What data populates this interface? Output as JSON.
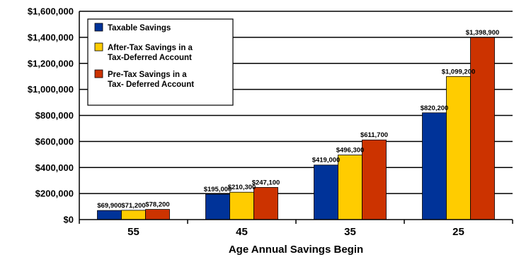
{
  "chart_data": {
    "type": "bar",
    "title": "",
    "xlabel": "Age Annual Savings Begin",
    "ylabel": "",
    "ylim": [
      0,
      1600000
    ],
    "ytick_step": 200000,
    "grid": true,
    "legend_position": "top-left",
    "categories": [
      "55",
      "45",
      "35",
      "25"
    ],
    "series": [
      {
        "name": "Taxable Savings",
        "color": "#003399",
        "values": [
          69900,
          195000,
          419000,
          820200
        ],
        "labels": [
          "$69,900",
          "$195,000",
          "$419,000",
          "$820,200"
        ]
      },
      {
        "name": "After-Tax Savings in a Tax-Deferred Account",
        "legend_lines": [
          "After-Tax Savings in a",
          "Tax-Deferred Account"
        ],
        "color": "#FFCC00",
        "values": [
          71200,
          210300,
          496300,
          1099200
        ],
        "labels": [
          "$71,200",
          "$210,300",
          "$496,300",
          "$1,099,200"
        ]
      },
      {
        "name": "Pre-Tax Savings in a Tax- Deferred Account",
        "legend_lines": [
          "Pre-Tax Savings in a",
          "Tax- Deferred Account"
        ],
        "color": "#CC3300",
        "values": [
          78200,
          247100,
          611700,
          1398900
        ],
        "labels": [
          "$78,200",
          "$247,100",
          "$611,700",
          "$1,398,900"
        ]
      }
    ],
    "ytick_labels": [
      "$0",
      "$200,000",
      "$400,000",
      "$600,000",
      "$800,000",
      "$1,000,000",
      "$1,200,000",
      "$1,400,000",
      "$1,600,000"
    ]
  }
}
